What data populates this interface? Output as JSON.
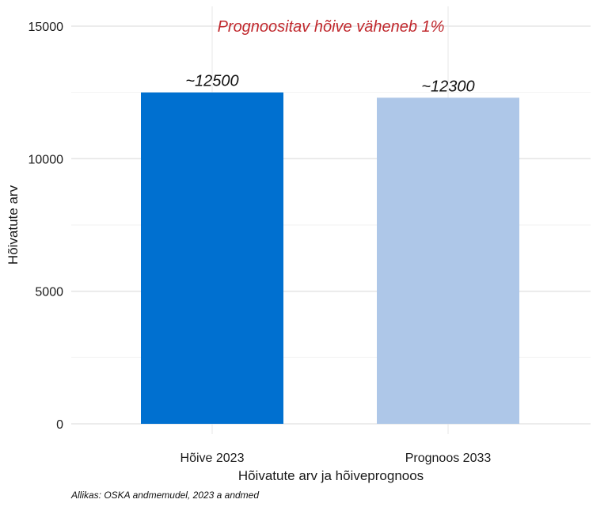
{
  "chart_data": {
    "type": "bar",
    "categories": [
      "Hõive 2023",
      "Prognoos 2033"
    ],
    "values": [
      12500,
      12300
    ],
    "data_labels": [
      "~12500",
      "~12300"
    ],
    "bar_colors": [
      "#0070d0",
      "#aec7e8"
    ],
    "xlabel": "Hõivatute arv ja hõiveprognoos",
    "ylabel": "Hõivatute arv",
    "ylim": [
      0,
      15000
    ],
    "yticks": [
      0,
      5000,
      10000,
      15000
    ],
    "grid": true,
    "annotation": {
      "text": "Prognoositav hõive väheneb 1%",
      "color": "#c0282d"
    },
    "caption": "Allikas: OSKA andmemudel, 2023 a andmed"
  }
}
